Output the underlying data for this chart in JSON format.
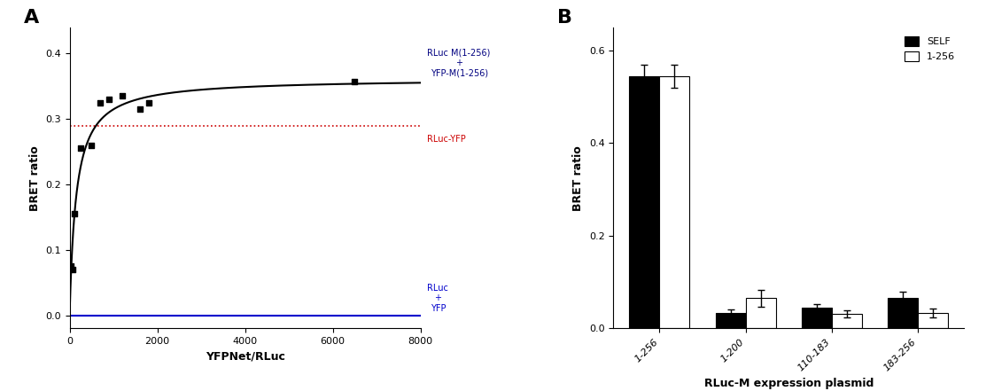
{
  "panel_A": {
    "scatter_points": [
      [
        30,
        0.075
      ],
      [
        60,
        0.07
      ],
      [
        120,
        0.155
      ],
      [
        250,
        0.255
      ],
      [
        500,
        0.26
      ],
      [
        700,
        0.325
      ],
      [
        900,
        0.33
      ],
      [
        1200,
        0.335
      ],
      [
        1600,
        0.315
      ],
      [
        1800,
        0.325
      ],
      [
        6500,
        0.357
      ]
    ],
    "curve_Bmax": 0.362,
    "curve_Kd": 150,
    "xlim": [
      0,
      8000
    ],
    "ylim": [
      -0.02,
      0.44
    ],
    "xticks": [
      0,
      2000,
      4000,
      6000,
      8000
    ],
    "yticks": [
      0.0,
      0.1,
      0.2,
      0.3,
      0.4
    ],
    "xlabel": "YFPNet/RLuc",
    "ylabel": "BRET ratio",
    "red_line_y": 0.289,
    "blue_line_y": 0.0,
    "label_rluc_yfp_m": "RLuc M(1-256)\n+\nYFP-M(1-256)",
    "label_rluc_yfp_m_color": "#000080",
    "label_rluc_yfp": "RLuc-YFP",
    "label_rluc_yfp_color": "#cc0000",
    "label_rluc_plus_yfp": "RLuc\n+\nYFP",
    "label_rluc_plus_yfp_color": "#0000cc"
  },
  "panel_B": {
    "categories": [
      "1-256",
      "1-200",
      "110-183",
      "183-256"
    ],
    "self_values": [
      0.545,
      0.033,
      0.045,
      0.065
    ],
    "self_errors": [
      0.025,
      0.008,
      0.007,
      0.015
    ],
    "ref_values": [
      0.545,
      0.065,
      0.032,
      0.033
    ],
    "ref_errors": [
      0.025,
      0.018,
      0.008,
      0.01
    ],
    "ylim": [
      0,
      0.65
    ],
    "yticks": [
      0.0,
      0.2,
      0.4,
      0.6
    ],
    "xlabel": "RLuc-M expression plasmid",
    "ylabel": "BRET ratio",
    "legend_self": "SELF",
    "legend_ref": "1-256",
    "bar_color_self": "#000000",
    "bar_color_ref": "#ffffff",
    "bar_edge_color": "#000000"
  }
}
